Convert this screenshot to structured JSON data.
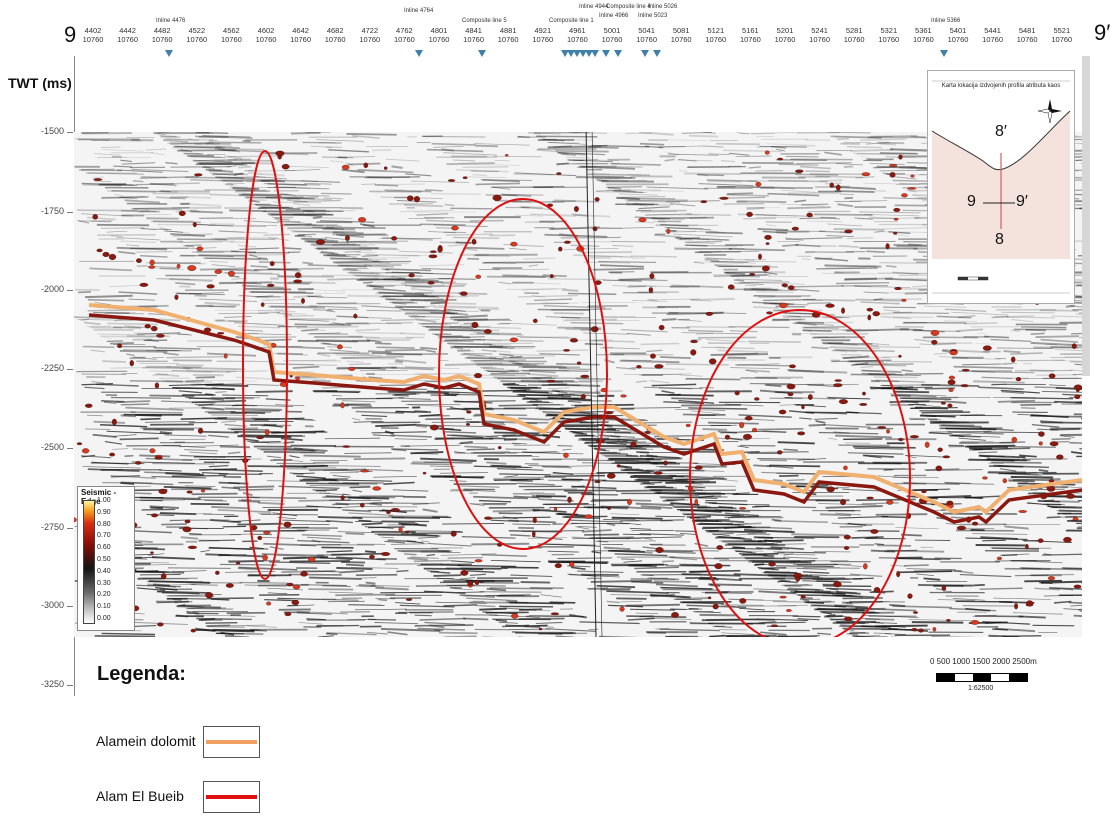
{
  "section_labels": {
    "left": "9",
    "right": "9′"
  },
  "axis": {
    "y_title": "TWT (ms)",
    "y_ticks": [
      "-1500",
      "-1750",
      "-2000",
      "-2250",
      "-2500",
      "-2750",
      "-3000",
      "-3250"
    ],
    "x_columns": [
      {
        "inline": "4402",
        "xline": "10760"
      },
      {
        "inline": "4442",
        "xline": "10760"
      },
      {
        "inline": "4482",
        "xline": "10760"
      },
      {
        "inline": "4522",
        "xline": "10760"
      },
      {
        "inline": "4562",
        "xline": "10760"
      },
      {
        "inline": "4602",
        "xline": "10760"
      },
      {
        "inline": "4642",
        "xline": "10760"
      },
      {
        "inline": "4682",
        "xline": "10760"
      },
      {
        "inline": "4722",
        "xline": "10760"
      },
      {
        "inline": "4762",
        "xline": "10760"
      },
      {
        "inline": "4801",
        "xline": "10760"
      },
      {
        "inline": "4841",
        "xline": "10760"
      },
      {
        "inline": "4881",
        "xline": "10760"
      },
      {
        "inline": "4921",
        "xline": "10760"
      },
      {
        "inline": "4961",
        "xline": "10760"
      },
      {
        "inline": "5001",
        "xline": "10760"
      },
      {
        "inline": "5041",
        "xline": "10760"
      },
      {
        "inline": "5081",
        "xline": "10760"
      },
      {
        "inline": "5121",
        "xline": "10760"
      },
      {
        "inline": "5161",
        "xline": "10760"
      },
      {
        "inline": "5201",
        "xline": "10760"
      },
      {
        "inline": "5241",
        "xline": "10760"
      },
      {
        "inline": "5281",
        "xline": "10760"
      },
      {
        "inline": "5321",
        "xline": "10760"
      },
      {
        "inline": "5361",
        "xline": "10760"
      },
      {
        "inline": "5401",
        "xline": "10760"
      },
      {
        "inline": "5441",
        "xline": "10760"
      },
      {
        "inline": "5481",
        "xline": "10760"
      },
      {
        "inline": "5521",
        "xline": "10760"
      }
    ],
    "top_tags": [
      "Inline 4476",
      "Inline 4764",
      "Composite line 5",
      "Composite line 1",
      "Inline 4944",
      "Composite line 4",
      "Inline 4966",
      "Inline 5023",
      "Inline 5026",
      "Inline 5366"
    ]
  },
  "colorbar": {
    "title": "Seismic - Edge",
    "ticks": [
      "1.00",
      "0.90",
      "0.80",
      "0.70",
      "0.60",
      "0.50",
      "0.40",
      "0.30",
      "0.20",
      "0.10",
      "0.00"
    ]
  },
  "inset": {
    "title": "Karta lokacija izdvojenih profila atributa kaos",
    "labels": {
      "top": "8′",
      "bottom": "8",
      "left": "9",
      "right": "9′"
    }
  },
  "scalebar": {
    "numbers": "0   500  1000  1500  2000  2500m",
    "ratio": "1:62500"
  },
  "legend": {
    "title": "Legenda:",
    "items": [
      {
        "label": "Alamein dolomit",
        "color": "#f0a060"
      },
      {
        "label": "Alam El Bueib",
        "color": "#e01010"
      }
    ]
  },
  "colors": {
    "horizon_upper": "#f0b070",
    "horizon_lower": "#8a1810",
    "ellipse": "#e01010"
  }
}
